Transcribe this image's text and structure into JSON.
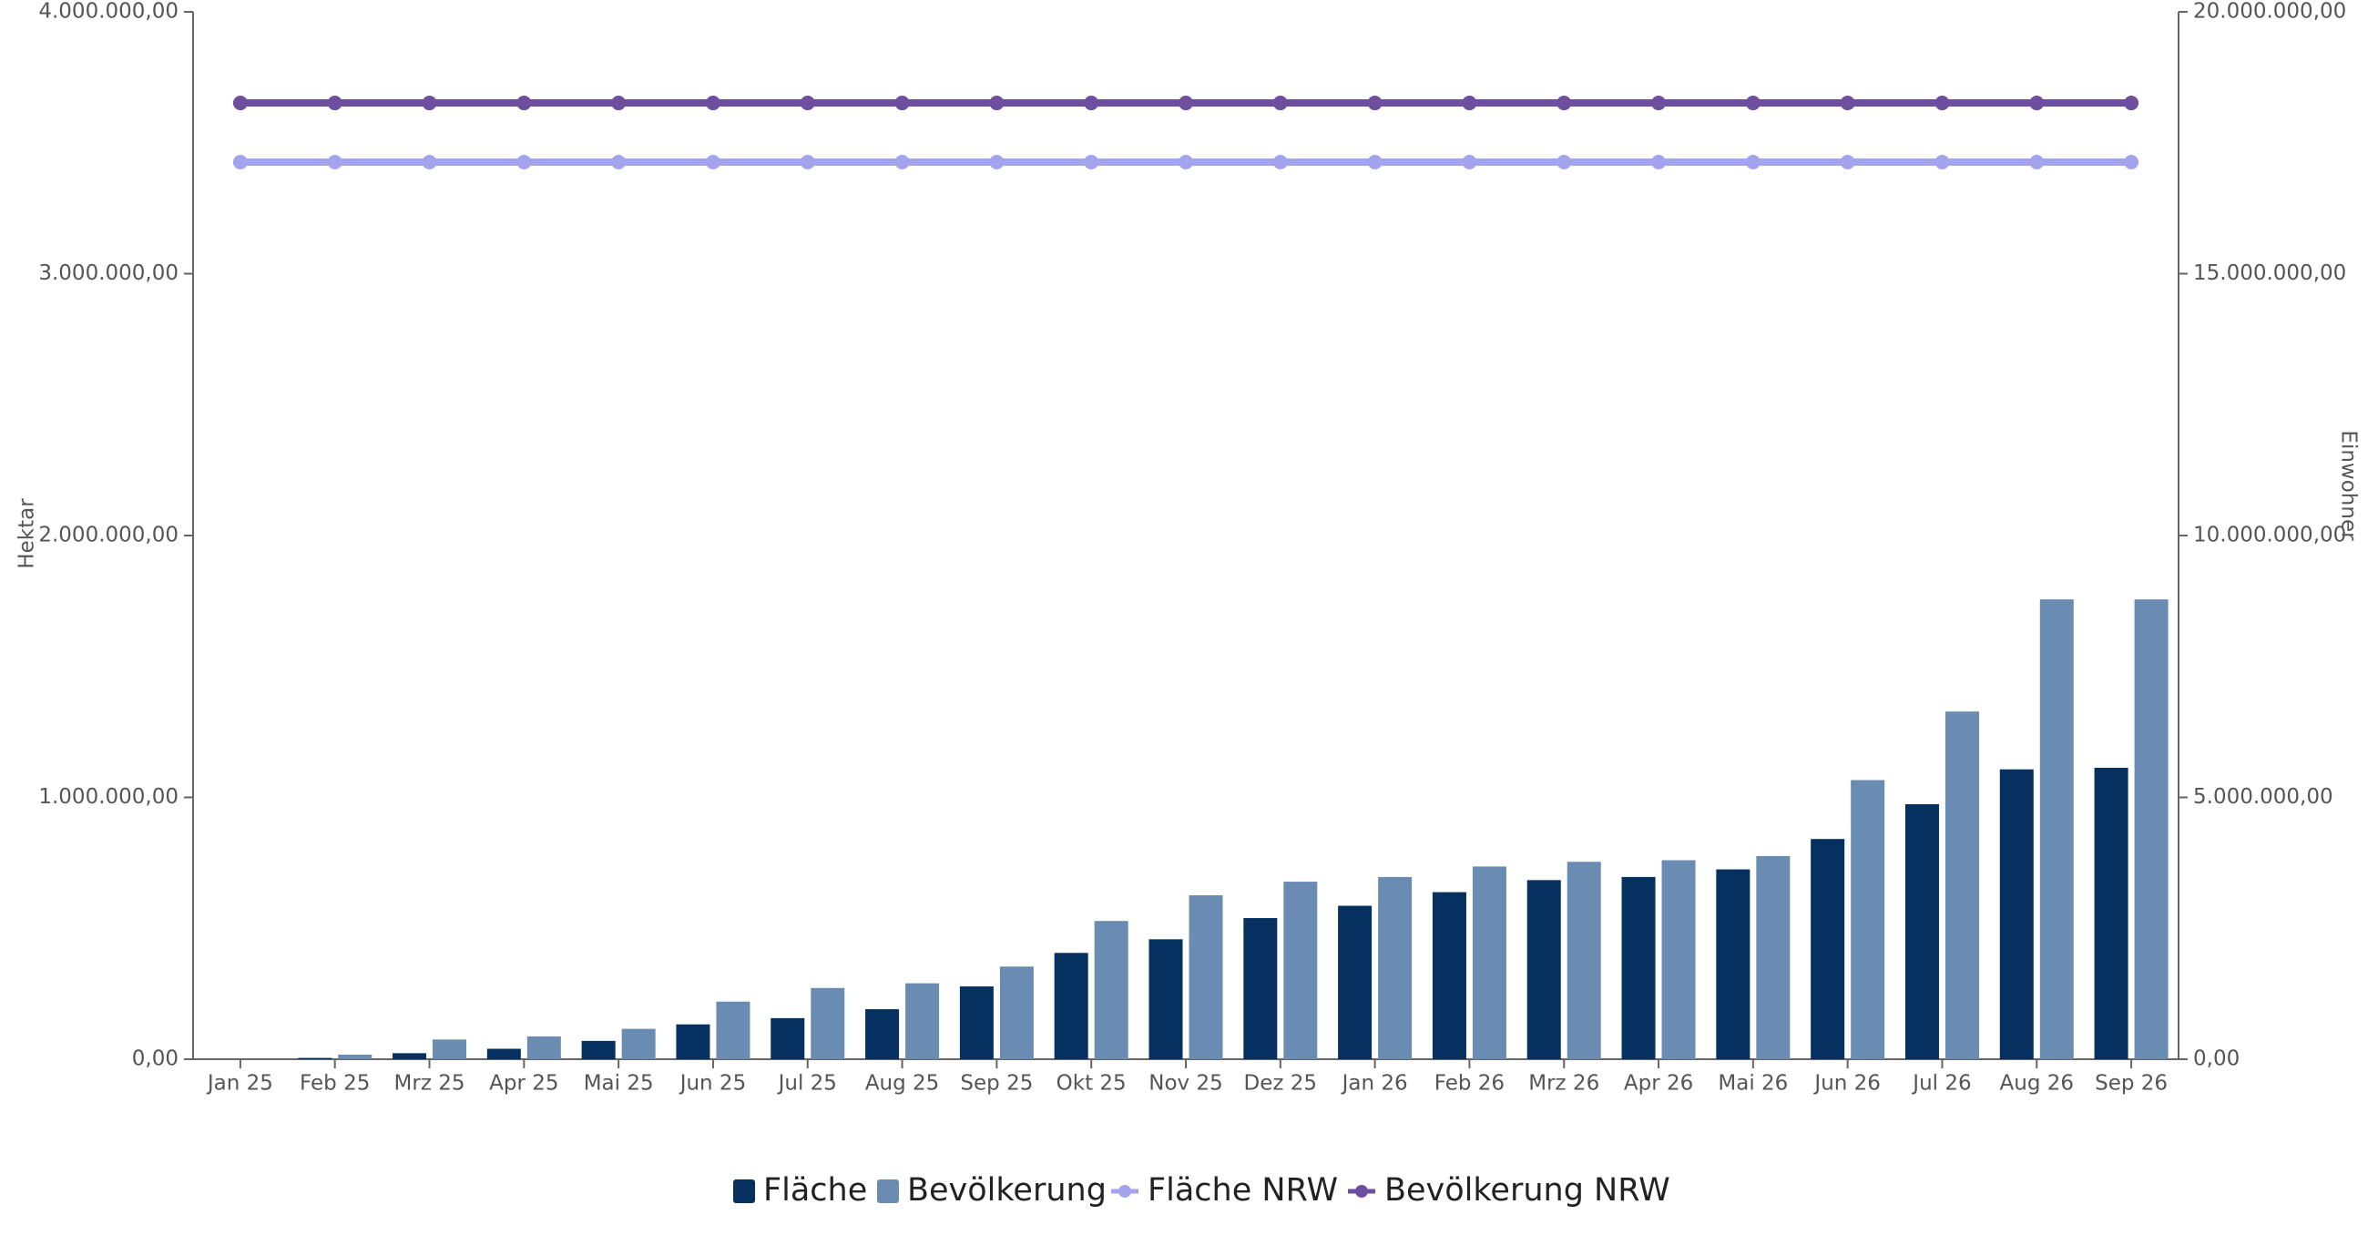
{
  "chart_data": {
    "type": "bar-line",
    "ylabel": "Hektar",
    "y2label": "Einwohner",
    "categories": [
      "Jan 25",
      "Feb 25",
      "Mrz 25",
      "Apr 25",
      "Mai 25",
      "Jun 25",
      "Jul 25",
      "Aug 25",
      "Sep 25",
      "Okt 25",
      "Nov 25",
      "Dez 25",
      "Jan 26",
      "Feb 26",
      "Mrz 26",
      "Apr 26",
      "Mai 26",
      "Jun 26",
      "Jul 26",
      "Aug 26",
      "Sep 26"
    ],
    "series": [
      {
        "name": "Fläche",
        "kind": "bar",
        "axis": "y",
        "color": "#06305f",
        "values": [
          0,
          5000,
          23000,
          40000,
          70000,
          133000,
          157000,
          191000,
          278000,
          406000,
          458000,
          539000,
          586000,
          638000,
          684000,
          696000,
          725000,
          841000,
          974000,
          1107000,
          1113000
        ]
      },
      {
        "name": "Bevölkerung",
        "kind": "bar",
        "axis": "y2",
        "color": "#6a8cb2",
        "values": [
          0,
          87000,
          377000,
          435000,
          580000,
          1100000,
          1360000,
          1450000,
          1770000,
          2640000,
          3130000,
          3390000,
          3480000,
          3680000,
          3770000,
          3800000,
          3880000,
          5330000,
          6640000,
          8780000,
          8780000
        ]
      },
      {
        "name": "Fläche NRW",
        "kind": "line",
        "axis": "y",
        "color": "#a4a4ee",
        "values": [
          3426000,
          3426000,
          3426000,
          3426000,
          3426000,
          3426000,
          3426000,
          3426000,
          3426000,
          3426000,
          3426000,
          3426000,
          3426000,
          3426000,
          3426000,
          3426000,
          3426000,
          3426000,
          3426000,
          3426000,
          3426000
        ]
      },
      {
        "name": "Bevölkerung NRW",
        "kind": "line",
        "axis": "y2",
        "color": "#6e4e9e",
        "values": [
          18260000,
          18260000,
          18260000,
          18260000,
          18260000,
          18260000,
          18260000,
          18260000,
          18260000,
          18260000,
          18260000,
          18260000,
          18260000,
          18260000,
          18260000,
          18260000,
          18260000,
          18260000,
          18260000,
          18260000,
          18260000
        ]
      }
    ],
    "ylim": [
      0,
      4000000
    ],
    "yticks": [
      {
        "value": 0,
        "label": "0,00"
      },
      {
        "value": 1000000,
        "label": "1.000.000,00"
      },
      {
        "value": 2000000,
        "label": "2.000.000,00"
      },
      {
        "value": 3000000,
        "label": "3.000.000,00"
      },
      {
        "value": 4000000,
        "label": "4.000.000,00"
      }
    ],
    "y2lim": [
      0,
      20000000
    ],
    "y2ticks": [
      {
        "value": 0,
        "label": "0,00"
      },
      {
        "value": 5000000,
        "label": "5.000.000,00"
      },
      {
        "value": 10000000,
        "label": "10.000.000,00"
      },
      {
        "value": 15000000,
        "label": "15.000.000,00"
      },
      {
        "value": 20000000,
        "label": "20.000.000,00"
      }
    ],
    "grid": false
  }
}
